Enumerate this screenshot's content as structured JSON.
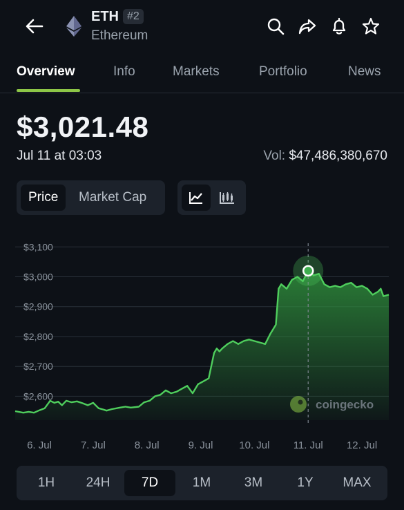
{
  "header": {
    "symbol": "ETH",
    "rank": "#2",
    "name": "Ethereum"
  },
  "tabs": [
    "Overview",
    "Info",
    "Markets",
    "Portfolio",
    "News"
  ],
  "price": {
    "value": "$3,021.48",
    "timestamp": "Jul 11 at 03:03",
    "volume_label": "Vol:",
    "volume_value": "$47,486,380,670"
  },
  "toggle": {
    "price": "Price",
    "market_cap": "Market Cap"
  },
  "watermark": "coingecko",
  "ranges": [
    "1H",
    "24H",
    "7D",
    "1M",
    "3M",
    "1Y",
    "MAX"
  ],
  "colors": {
    "accent": "#8dc647",
    "line": "#4fce5d",
    "background": "#0d1117"
  },
  "chart_data": {
    "type": "area",
    "ytick_labels": [
      "$3,100",
      "$3,000",
      "$2,900",
      "$2,800",
      "$2,700",
      "$2,600"
    ],
    "yticks": [
      3100,
      3000,
      2900,
      2800,
      2700,
      2600
    ],
    "xtick_labels": [
      "6. Jul",
      "7. Jul",
      "8. Jul",
      "9. Jul",
      "10. Jul",
      "11. Jul",
      "12. Jul"
    ],
    "xticks": [
      0.5,
      1.5,
      2.5,
      3.5,
      4.5,
      5.5,
      6.5
    ],
    "xlim": [
      0.05,
      7.0
    ],
    "ylim": [
      2520,
      3140
    ],
    "grid": true,
    "highlight": {
      "x": 5.5,
      "y": 3020
    },
    "x": [
      0.05,
      0.2,
      0.3,
      0.4,
      0.5,
      0.6,
      0.7,
      0.78,
      0.85,
      0.92,
      1.0,
      1.1,
      1.2,
      1.3,
      1.4,
      1.5,
      1.6,
      1.7,
      1.75,
      1.85,
      2.0,
      2.1,
      2.2,
      2.35,
      2.45,
      2.55,
      2.65,
      2.75,
      2.85,
      2.95,
      3.05,
      3.15,
      3.25,
      3.35,
      3.45,
      3.55,
      3.65,
      3.75,
      3.8,
      3.85,
      3.9,
      4.0,
      4.1,
      4.2,
      4.3,
      4.4,
      4.5,
      4.6,
      4.7,
      4.8,
      4.85,
      4.9,
      4.95,
      5.0,
      5.1,
      5.2,
      5.3,
      5.4,
      5.5,
      5.6,
      5.7,
      5.8,
      5.9,
      6.0,
      6.1,
      6.2,
      6.3,
      6.4,
      6.5,
      6.6,
      6.7,
      6.8,
      6.85,
      6.9,
      7.0
    ],
    "y": [
      2550,
      2545,
      2548,
      2545,
      2553,
      2560,
      2585,
      2578,
      2582,
      2570,
      2585,
      2580,
      2583,
      2577,
      2570,
      2578,
      2560,
      2555,
      2552,
      2557,
      2562,
      2565,
      2562,
      2565,
      2580,
      2585,
      2600,
      2605,
      2620,
      2610,
      2615,
      2625,
      2635,
      2610,
      2640,
      2650,
      2660,
      2745,
      2760,
      2750,
      2760,
      2775,
      2785,
      2775,
      2785,
      2790,
      2785,
      2780,
      2775,
      2810,
      2825,
      2840,
      2960,
      2975,
      2960,
      2990,
      3000,
      2985,
      3020,
      3005,
      3010,
      2975,
      2965,
      2970,
      2965,
      2975,
      2980,
      2965,
      2970,
      2960,
      2940,
      2950,
      2960,
      2935,
      2940
    ]
  }
}
